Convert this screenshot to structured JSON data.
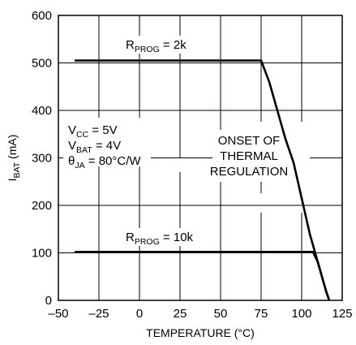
{
  "chart_data": {
    "type": "line",
    "xlabel": "TEMPERATURE (°C)",
    "ylabel": {
      "main": "I",
      "sub": "BAT",
      "tail": " (mA)"
    },
    "xlim": [
      -50,
      125
    ],
    "ylim": [
      0,
      600
    ],
    "x_ticks": [
      -50,
      -25,
      0,
      25,
      50,
      75,
      100,
      125
    ],
    "y_ticks": [
      0,
      100,
      200,
      300,
      400,
      500,
      600
    ],
    "x_tick_labels": [
      "–50",
      "–25",
      "0",
      "25",
      "50",
      "75",
      "100",
      "125"
    ],
    "y_tick_labels": [
      "0",
      "100",
      "200",
      "300",
      "400",
      "500",
      "600"
    ],
    "grid": true,
    "series": [
      {
        "name": "R_PROG = 2k",
        "points": [
          [
            -40,
            505
          ],
          [
            75,
            505
          ],
          [
            80,
            460
          ],
          [
            85,
            400
          ],
          [
            90,
            340
          ],
          [
            95,
            290
          ],
          [
            100,
            215
          ],
          [
            105,
            140
          ],
          [
            110,
            80
          ],
          [
            115,
            20
          ],
          [
            117,
            0
          ]
        ]
      },
      {
        "name": "R_PROG = 10k",
        "points": [
          [
            -40,
            102
          ],
          [
            107,
            102
          ],
          [
            110,
            80
          ],
          [
            115,
            20
          ],
          [
            117,
            0
          ]
        ]
      }
    ],
    "series_labels": [
      {
        "pre": "R",
        "sub": "PROG",
        "post": " = 2k"
      },
      {
        "pre": "R",
        "sub": "PROG",
        "post": " = 10k"
      }
    ],
    "conditions": [
      {
        "pre": "V",
        "sub": "CC",
        "post": " = 5V"
      },
      {
        "pre": "V",
        "sub": "BAT",
        "post": " = 4V"
      },
      {
        "pre": "θ",
        "sub": "JA",
        "post": " = 80°C/W"
      }
    ],
    "annotation": [
      "ONSET OF",
      "THERMAL",
      "REGULATION"
    ]
  }
}
